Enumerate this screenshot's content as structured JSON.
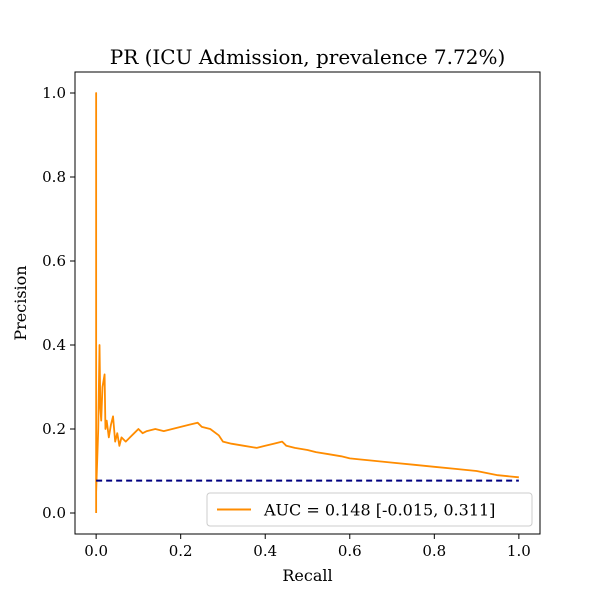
{
  "chart_data": {
    "type": "line",
    "title": "PR (ICU Admission, prevalence 7.72%)",
    "xlabel": "Recall",
    "ylabel": "Precision",
    "xlim": [
      -0.05,
      1.05
    ],
    "ylim": [
      -0.05,
      1.05
    ],
    "xticks": [
      0.0,
      0.2,
      0.4,
      0.6,
      0.8,
      1.0
    ],
    "xtick_labels": [
      "0.0",
      "0.2",
      "0.4",
      "0.6",
      "0.8",
      "1.0"
    ],
    "yticks": [
      0.0,
      0.2,
      0.4,
      0.6,
      0.8,
      1.0
    ],
    "ytick_labels": [
      "0.0",
      "0.2",
      "0.4",
      "0.6",
      "0.8",
      "1.0"
    ],
    "grid": false,
    "legend_position": "bottom-right",
    "series": [
      {
        "name": "AUC = 0.148 [-0.015, 0.311]",
        "color": "#ff8c00",
        "style": "solid",
        "x": [
          0.0,
          0.0,
          0.0,
          0.005,
          0.008,
          0.01,
          0.012,
          0.015,
          0.02,
          0.022,
          0.025,
          0.03,
          0.035,
          0.04,
          0.045,
          0.05,
          0.055,
          0.06,
          0.07,
          0.08,
          0.09,
          0.1,
          0.11,
          0.12,
          0.14,
          0.16,
          0.18,
          0.2,
          0.22,
          0.24,
          0.25,
          0.27,
          0.29,
          0.3,
          0.32,
          0.35,
          0.38,
          0.4,
          0.42,
          0.44,
          0.45,
          0.47,
          0.5,
          0.52,
          0.55,
          0.58,
          0.6,
          0.62,
          0.65,
          0.7,
          0.75,
          0.8,
          0.85,
          0.9,
          0.95,
          1.0
        ],
        "y": [
          0.0,
          1.0,
          0.05,
          0.2,
          0.4,
          0.25,
          0.22,
          0.3,
          0.33,
          0.2,
          0.22,
          0.18,
          0.21,
          0.23,
          0.17,
          0.19,
          0.16,
          0.18,
          0.17,
          0.18,
          0.19,
          0.2,
          0.19,
          0.195,
          0.2,
          0.195,
          0.2,
          0.205,
          0.21,
          0.215,
          0.205,
          0.2,
          0.185,
          0.17,
          0.165,
          0.16,
          0.155,
          0.16,
          0.165,
          0.17,
          0.16,
          0.155,
          0.15,
          0.145,
          0.14,
          0.135,
          0.13,
          0.128,
          0.125,
          0.12,
          0.115,
          0.11,
          0.105,
          0.1,
          0.09,
          0.085
        ]
      },
      {
        "name": "",
        "color": "#000080",
        "style": "dashed",
        "x": [
          0.0,
          1.0
        ],
        "y": [
          0.0772,
          0.0772
        ]
      }
    ]
  }
}
